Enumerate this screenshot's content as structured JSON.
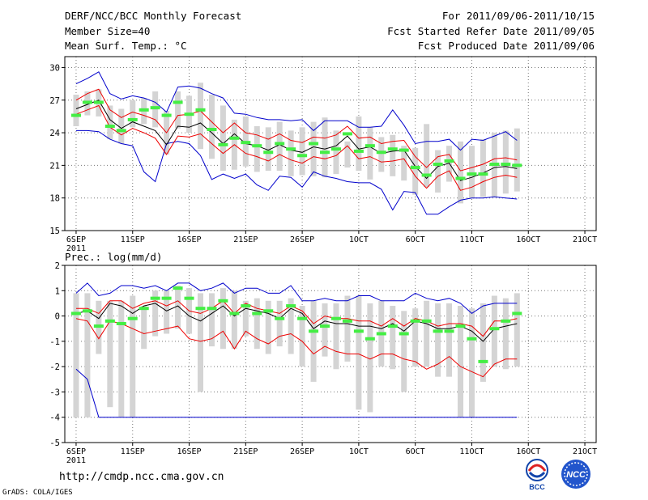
{
  "header": {
    "title": "DERF/NCC/BCC Monthly Forecast",
    "member_size": "Member Size=40",
    "variable": "Mean Surf. Temp.: °C",
    "period": "For 2011/09/06-2011/10/15",
    "start_date": "Fcst Started Refer Date 2011/09/05",
    "produced_date": "Fcst Produced Date 2011/09/06"
  },
  "footer": {
    "url": "http://cmdp.ncc.cma.gov.cn",
    "grads": "GrADS: COLA/IGES",
    "logo_bcc": "BCC",
    "logo_ncc": "NCC"
  },
  "colors": {
    "box": "#d4d4d4",
    "median": "#44ee44",
    "mean": "#000000",
    "std": "#ee0000",
    "range": "#0000cc",
    "grid": "#777777"
  },
  "chart_data": [
    {
      "type": "box",
      "title": "Mean Surf. Temp.: °C",
      "ylim": [
        15,
        31
      ],
      "yticks": [
        15,
        18,
        21,
        24,
        27,
        30
      ],
      "x": [
        1,
        2,
        3,
        4,
        5,
        6,
        7,
        8,
        9,
        10,
        11,
        12,
        13,
        14,
        15,
        16,
        17,
        18,
        19,
        20,
        21,
        22,
        23,
        24,
        25,
        26,
        27,
        28,
        29,
        30,
        31,
        32,
        33,
        34,
        35,
        36,
        37,
        38,
        39,
        40
      ],
      "xtick_positions": [
        1,
        6,
        11,
        16,
        21,
        26,
        31,
        36,
        41,
        46
      ],
      "xtick_labels": [
        "6SEP",
        "11SEP",
        "16SEP",
        "21SEP",
        "26SEP",
        "1OCT",
        "6OCT",
        "11OCT",
        "16OCT",
        "21OCT"
      ],
      "xtick_year": "2011",
      "series": [
        {
          "name": "box_top",
          "values": [
            27.5,
            27.8,
            28.0,
            26.5,
            26.2,
            27.0,
            27.2,
            27.8,
            26.0,
            27.8,
            27.4,
            28.6,
            27.5,
            26.5,
            25.2,
            25.5,
            24.6,
            24.5,
            25.0,
            24.2,
            24.5,
            25.0,
            25.4,
            24.2,
            23.2,
            25.5,
            24.5,
            23.6,
            23.8,
            22.8,
            22.6,
            24.8,
            22.4,
            22.8,
            23.2,
            22.8,
            23.4,
            24.0,
            24.2,
            24.4
          ]
        },
        {
          "name": "box_bottom",
          "values": [
            24.6,
            25.6,
            25.5,
            23.4,
            23.0,
            24.5,
            24.8,
            24.5,
            22.0,
            24.4,
            24.0,
            22.5,
            21.6,
            20.5,
            20.6,
            20.9,
            20.4,
            20.5,
            20.5,
            20.0,
            20.1,
            20.0,
            19.9,
            20.2,
            20.8,
            20.5,
            19.7,
            20.4,
            20.0,
            19.6,
            18.3,
            19.0,
            18.5,
            19.5,
            17.5,
            18.0,
            18.1,
            18.1,
            18.4,
            18.6
          ]
        },
        {
          "name": "median",
          "values": [
            25.6,
            26.8,
            26.8,
            24.6,
            24.2,
            25.2,
            26.1,
            26.3,
            25.6,
            26.8,
            25.7,
            26.1,
            24.3,
            22.9,
            23.5,
            23.1,
            22.8,
            22.2,
            23.0,
            22.5,
            21.9,
            23.0,
            22.2,
            22.5,
            23.9,
            22.3,
            22.8,
            22.2,
            22.5,
            22.4,
            20.8,
            20.1,
            21.1,
            21.4,
            19.8,
            20.2,
            20.2,
            21.1,
            21.1,
            21.0
          ]
        },
        {
          "name": "mean",
          "values": [
            26.2,
            26.6,
            27.0,
            25.2,
            24.4,
            25.0,
            24.6,
            24.2,
            22.9,
            24.6,
            24.5,
            24.9,
            24.0,
            23.0,
            23.9,
            23.0,
            22.8,
            22.4,
            22.9,
            22.4,
            22.2,
            22.7,
            22.5,
            22.8,
            23.7,
            22.5,
            22.7,
            22.1,
            22.3,
            22.4,
            20.9,
            19.8,
            20.9,
            21.2,
            19.6,
            19.9,
            20.3,
            20.8,
            20.9,
            20.7
          ]
        },
        {
          "name": "std_upper",
          "values": [
            27.0,
            27.6,
            28.0,
            26.1,
            25.4,
            25.9,
            25.6,
            25.2,
            24.0,
            25.6,
            25.7,
            26.0,
            25.0,
            24.0,
            24.9,
            24.0,
            23.8,
            23.4,
            23.9,
            23.3,
            23.1,
            23.6,
            23.5,
            23.8,
            24.6,
            23.5,
            23.6,
            23.0,
            23.2,
            23.3,
            21.8,
            20.8,
            21.8,
            22.0,
            20.5,
            20.8,
            21.1,
            21.6,
            21.7,
            21.5
          ]
        },
        {
          "name": "std_lower",
          "values": [
            25.7,
            26.1,
            26.5,
            24.5,
            23.8,
            24.4,
            24.0,
            23.5,
            22.0,
            23.7,
            23.6,
            23.9,
            23.0,
            22.1,
            22.9,
            22.1,
            21.8,
            21.4,
            22.0,
            21.5,
            21.2,
            21.8,
            21.6,
            21.9,
            22.8,
            21.6,
            21.8,
            21.3,
            21.4,
            21.6,
            20.0,
            18.9,
            20.0,
            20.5,
            18.7,
            19.0,
            19.5,
            19.9,
            20.1,
            19.9
          ]
        },
        {
          "name": "max",
          "values": [
            28.5,
            29.0,
            29.6,
            27.6,
            27.1,
            27.4,
            27.2,
            26.8,
            25.9,
            28.2,
            28.3,
            28.1,
            27.6,
            27.2,
            25.8,
            25.7,
            25.4,
            25.2,
            25.2,
            25.1,
            25.2,
            24.2,
            25.1,
            25.1,
            25.1,
            24.5,
            24.5,
            24.6,
            26.1,
            24.7,
            23.0,
            23.2,
            23.2,
            23.4,
            22.4,
            23.4,
            23.3,
            23.7,
            24.1,
            23.3
          ]
        },
        {
          "name": "min",
          "values": [
            24.2,
            24.2,
            24.1,
            23.4,
            23.0,
            22.8,
            20.4,
            19.5,
            23.0,
            23.2,
            23.0,
            21.9,
            19.7,
            20.2,
            19.8,
            20.2,
            19.2,
            18.7,
            20.0,
            19.9,
            19.0,
            20.4,
            20.0,
            19.8,
            19.5,
            19.4,
            19.4,
            18.8,
            16.9,
            18.6,
            18.5,
            16.5,
            16.5,
            17.2,
            17.8,
            18.0,
            18.0,
            18.1,
            18.0,
            17.9
          ]
        }
      ]
    },
    {
      "type": "box",
      "title": "Prec.: log(mm/d)",
      "ylim": [
        -5,
        2
      ],
      "yticks": [
        -5,
        -4,
        -3,
        -2,
        -1,
        0,
        1,
        2
      ],
      "x": [
        1,
        2,
        3,
        4,
        5,
        6,
        7,
        8,
        9,
        10,
        11,
        12,
        13,
        14,
        15,
        16,
        17,
        18,
        19,
        20,
        21,
        22,
        23,
        24,
        25,
        26,
        27,
        28,
        29,
        30,
        31,
        32,
        33,
        34,
        35,
        36,
        37,
        38,
        39,
        40
      ],
      "xtick_positions": [
        1,
        6,
        11,
        16,
        21,
        26,
        31,
        36,
        41,
        46
      ],
      "xtick_labels": [
        "6SEP",
        "11SEP",
        "16SEP",
        "21SEP",
        "26SEP",
        "1OCT",
        "6OCT",
        "11OCT",
        "16OCT",
        "21OCT"
      ],
      "xtick_year": "2011",
      "series": [
        {
          "name": "box_top",
          "values": [
            0.9,
            0.9,
            0.6,
            0.6,
            0.6,
            0.8,
            0.4,
            1.0,
            1.0,
            1.2,
            1.1,
            0.9,
            0.9,
            1.1,
            1.0,
            0.6,
            0.7,
            0.6,
            0.6,
            0.7,
            0.4,
            0.6,
            0.5,
            0.5,
            0.8,
            0.8,
            0.5,
            0.6,
            0.4,
            0.2,
            0.3,
            0.6,
            0.5,
            0.5,
            0.4,
            0.3,
            0.5,
            0.8,
            0.7,
            0.9
          ]
        },
        {
          "name": "box_bottom",
          "values": [
            -4.0,
            -4.0,
            -1.5,
            -3.6,
            -4.0,
            -4.0,
            -1.3,
            -0.8,
            -0.7,
            -0.5,
            -0.7,
            -3.0,
            -1.2,
            -1.3,
            -1.3,
            -0.8,
            -1.3,
            -1.5,
            -1.2,
            -1.5,
            -2.0,
            -2.6,
            -1.6,
            -2.1,
            -1.8,
            -3.7,
            -3.8,
            -2.0,
            -2.1,
            -3.0,
            -2.0,
            -2.0,
            -2.4,
            -2.4,
            -4.0,
            -4.0,
            -2.6,
            -2.0,
            -2.1,
            -2.0
          ]
        },
        {
          "name": "median",
          "values": [
            0.1,
            0.2,
            -0.4,
            -0.2,
            -0.3,
            -0.1,
            0.3,
            0.7,
            0.7,
            1.1,
            0.7,
            0.3,
            0.3,
            0.6,
            0.1,
            0.4,
            0.1,
            0.2,
            -0.1,
            0.4,
            -0.1,
            -0.6,
            -0.4,
            -0.1,
            -0.2,
            -0.6,
            -0.9,
            -0.7,
            -0.4,
            -0.7,
            -0.2,
            -0.2,
            -0.6,
            -0.6,
            -0.4,
            -0.9,
            -1.8,
            -0.5,
            -0.2,
            0.1
          ]
        },
        {
          "name": "mean",
          "values": [
            0.1,
            0.2,
            -0.1,
            0.5,
            0.4,
            0.1,
            0.4,
            0.5,
            0.2,
            0.4,
            0.0,
            -0.2,
            0.1,
            0.4,
            0.0,
            0.3,
            0.2,
            0.1,
            -0.1,
            0.3,
            0.1,
            -0.5,
            -0.2,
            -0.3,
            -0.3,
            -0.4,
            -0.4,
            -0.5,
            -0.3,
            -0.6,
            -0.2,
            -0.3,
            -0.5,
            -0.5,
            -0.4,
            -0.6,
            -1.0,
            -0.5,
            -0.4,
            -0.3
          ]
        },
        {
          "name": "std_upper",
          "values": [
            0.3,
            0.3,
            0.1,
            0.6,
            0.6,
            0.3,
            0.5,
            0.6,
            0.4,
            0.6,
            0.2,
            0.1,
            0.3,
            0.6,
            0.1,
            0.5,
            0.3,
            0.2,
            0.1,
            0.4,
            0.2,
            -0.3,
            0.0,
            -0.1,
            -0.1,
            -0.2,
            -0.2,
            -0.4,
            -0.1,
            -0.4,
            -0.1,
            -0.2,
            -0.4,
            -0.3,
            -0.3,
            -0.4,
            -0.8,
            -0.2,
            -0.2,
            -0.1
          ]
        },
        {
          "name": "std_lower",
          "values": [
            -0.1,
            -0.2,
            -0.9,
            -0.2,
            -0.3,
            -0.5,
            -0.7,
            -0.6,
            -0.5,
            -0.4,
            -0.9,
            -1.0,
            -0.9,
            -0.6,
            -1.3,
            -0.6,
            -0.9,
            -1.1,
            -0.8,
            -0.7,
            -1.0,
            -1.5,
            -1.2,
            -1.4,
            -1.5,
            -1.5,
            -1.7,
            -1.5,
            -1.5,
            -1.7,
            -1.8,
            -2.1,
            -1.9,
            -1.6,
            -2.0,
            -2.2,
            -2.4,
            -1.9,
            -1.7,
            -1.7
          ]
        },
        {
          "name": "max",
          "values": [
            0.9,
            1.3,
            0.8,
            0.9,
            1.2,
            1.2,
            1.1,
            1.2,
            1.0,
            1.3,
            1.3,
            1.0,
            1.1,
            1.3,
            0.9,
            1.1,
            1.1,
            0.9,
            0.9,
            1.2,
            0.6,
            0.6,
            0.7,
            0.6,
            0.6,
            0.8,
            0.8,
            0.6,
            0.6,
            0.6,
            0.9,
            0.7,
            0.6,
            0.7,
            0.5,
            0.1,
            0.4,
            0.5,
            0.5,
            0.5
          ]
        },
        {
          "name": "min",
          "values": [
            -2.1,
            -2.5,
            -4.0,
            -4.0,
            -4.0,
            -4.0,
            -4.0,
            -4.0,
            -4.0,
            -4.0,
            -4.0,
            -4.0,
            -4.0,
            -4.0,
            -4.0,
            -4.0,
            -4.0,
            -4.0,
            -4.0,
            -4.0,
            -4.0,
            -4.0,
            -4.0,
            -4.0,
            -4.0,
            -4.0,
            -4.0,
            -4.0,
            -4.0,
            -4.0,
            -4.0,
            -4.0,
            -4.0,
            -4.0,
            -4.0,
            -4.0,
            -4.0,
            -4.0,
            -4.0,
            -4.0
          ]
        }
      ]
    }
  ]
}
